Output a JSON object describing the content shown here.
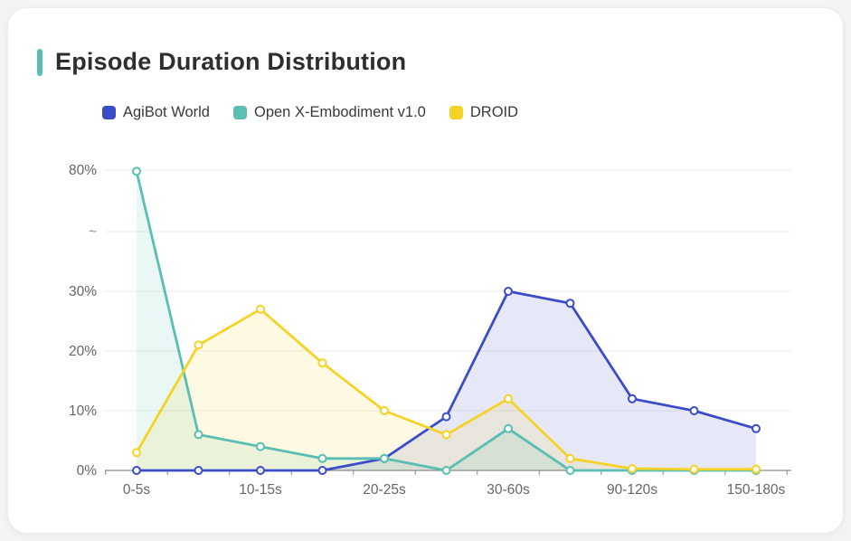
{
  "card": {
    "title": "Episode Duration Distribution",
    "accent_color": "#58bfb2"
  },
  "legend": [
    {
      "label": "AgiBot World",
      "color": "#3b4cc9"
    },
    {
      "label": "Open X-Embodiment v1.0",
      "color": "#58bfb2"
    },
    {
      "label": "DROID",
      "color": "#f5d326"
    }
  ],
  "chart_data": {
    "type": "line",
    "area": true,
    "grid": true,
    "legend_position": "top",
    "categories": [
      "0-5s",
      "5-10s",
      "10-15s",
      "15-20s",
      "20-25s",
      "25-30s",
      "30-60s",
      "60-90s",
      "90-120s",
      "120-150s",
      "150-180s"
    ],
    "x_tick_labels_shown": [
      "0-5s",
      "10-15s",
      "20-25s",
      "30-60s",
      "90-120s",
      "150-180s"
    ],
    "series": [
      {
        "name": "AgiBot World",
        "color": "#3b4cc9",
        "values": [
          0,
          0,
          0,
          0,
          2,
          9,
          30,
          28,
          12,
          10,
          7
        ]
      },
      {
        "name": "Open X-Embodiment v1.0",
        "color": "#58bfb2",
        "values": [
          79.5,
          6,
          4,
          2,
          2,
          0,
          7,
          0,
          0,
          0,
          0
        ]
      },
      {
        "name": "DROID",
        "color": "#f5d326",
        "values": [
          3,
          21,
          27,
          18,
          10,
          6,
          12,
          2,
          0.3,
          0.2,
          0.2
        ]
      }
    ],
    "y_ticks": [
      "0%",
      "10%",
      "20%",
      "30%",
      "~",
      "80%"
    ],
    "y_axis_break": {
      "linear_below": 30,
      "top_value": 80
    },
    "ylabel": "",
    "xlabel": ""
  },
  "colors": {
    "gridline": "#ebebeb",
    "axis_line": "#8c8c8c",
    "tick_text": "#666666"
  }
}
